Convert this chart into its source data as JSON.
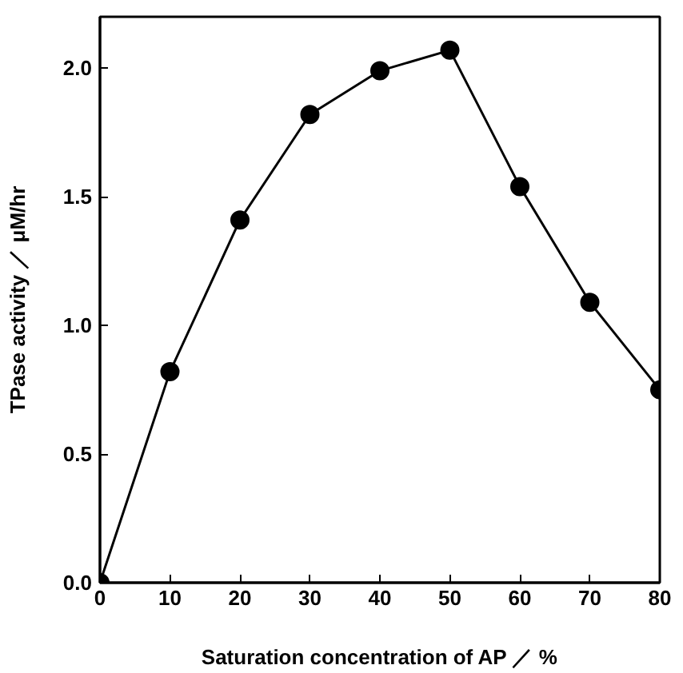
{
  "chart_data": {
    "type": "line",
    "xlabel": "Saturation concentration of AP ／ %",
    "ylabel": "TPase activity ／ μM/hr",
    "x": [
      0,
      10,
      20,
      30,
      40,
      50,
      60,
      70,
      80
    ],
    "series": [
      {
        "color": "#000000",
        "values": [
          0,
          0.82,
          1.41,
          1.82,
          1.99,
          2.07,
          1.54,
          1.09,
          0.75
        ]
      }
    ],
    "xlim": [
      0,
      80
    ],
    "ylim": [
      0,
      2.2
    ],
    "xticks": [
      0,
      10,
      20,
      30,
      40,
      50,
      60,
      70,
      80
    ],
    "yticks": [
      {
        "value": 0,
        "label": "0.0"
      },
      {
        "value": 0.5,
        "label": "0.5"
      },
      {
        "value": 1,
        "label": "1.0"
      },
      {
        "value": 1.5,
        "label": "1.5"
      },
      {
        "value": 2,
        "label": "2.0"
      }
    ],
    "marker": "circle",
    "line_style": "solid",
    "grid": false
  }
}
